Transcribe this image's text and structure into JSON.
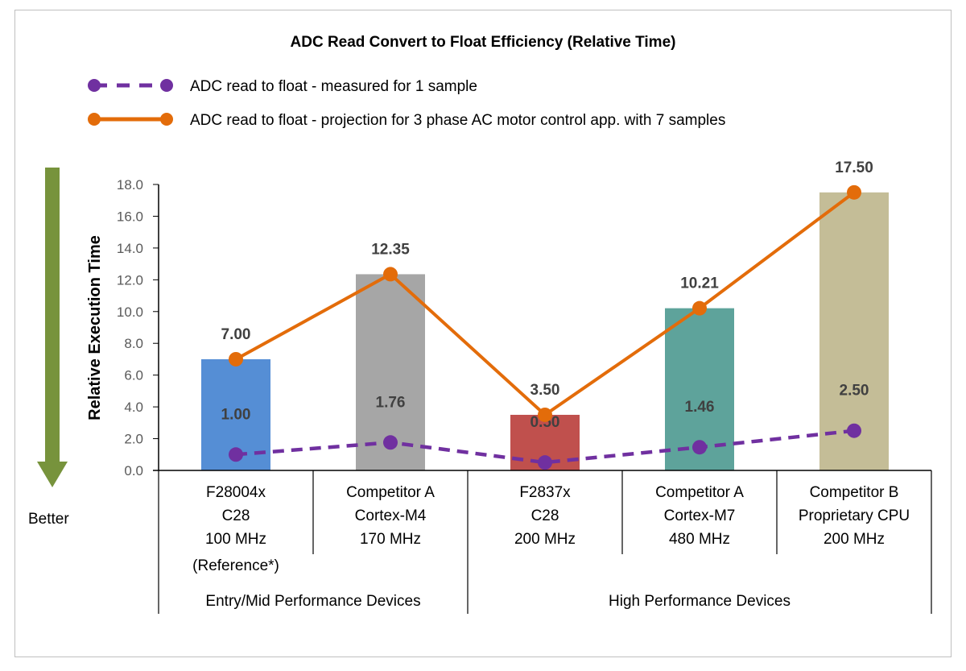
{
  "chart_data": {
    "type": "bar+line",
    "title": "ADC Read Convert to Float Efficiency (Relative Time)",
    "ylabel": "Relative Execution Time",
    "ylim": [
      0,
      18
    ],
    "yticks": [
      "0.0",
      "2.0",
      "4.0",
      "6.0",
      "8.0",
      "10.0",
      "12.0",
      "14.0",
      "16.0",
      "18.0"
    ],
    "legend_placement": "top",
    "categories": [
      [
        "F28004x",
        "C28",
        "100 MHz",
        "(Reference*)"
      ],
      [
        "Competitor A",
        "Cortex-M4",
        "170 MHz"
      ],
      [
        "F2837x",
        "C28",
        "200 MHz"
      ],
      [
        "Competitor A",
        "Cortex-M7",
        "480 MHz"
      ],
      [
        "Competitor B",
        "Proprietary CPU",
        "200 MHz"
      ]
    ],
    "groups": [
      {
        "label": "Entry/Mid Performance Devices",
        "span": 2
      },
      {
        "label": "High Performance Devices",
        "span": 3
      }
    ],
    "bars": {
      "values": [
        7.0,
        12.35,
        3.5,
        10.21,
        17.5
      ],
      "colors": [
        "#558ed5",
        "#a6a6a6",
        "#c0504d",
        "#5ea39b",
        "#c4bd97"
      ]
    },
    "series": [
      {
        "name": "ADC read to float - measured for 1 sample",
        "values": [
          1.0,
          1.76,
          0.5,
          1.46,
          2.5
        ],
        "labels": [
          "1.00",
          "1.76",
          "0.50",
          "1.46",
          "2.50"
        ],
        "color": "#7030a0",
        "style": "dashed"
      },
      {
        "name": "ADC read to float - projection for 3 phase AC motor control app. with 7 samples",
        "values": [
          7.0,
          12.35,
          3.5,
          10.21,
          17.5
        ],
        "labels": [
          "7.00",
          "12.35",
          "3.50",
          "10.21",
          "17.50"
        ],
        "color": "#e36c0a",
        "style": "solid"
      }
    ],
    "annotation": {
      "text": "Better",
      "arrow_color": "#77933c",
      "arrow_direction": "down"
    }
  }
}
